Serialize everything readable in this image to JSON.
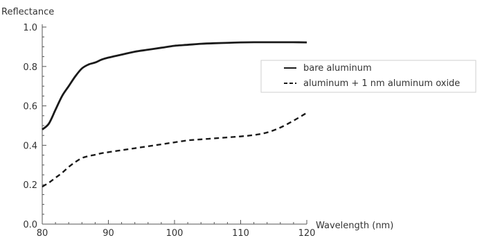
{
  "chart_data": {
    "type": "line",
    "title": "",
    "xlabel": "Wavelength (nm)",
    "ylabel": "Reflectance",
    "xlim": [
      80,
      120
    ],
    "ylim": [
      0.0,
      1.0
    ],
    "x_ticks": [
      80,
      90,
      100,
      110,
      120
    ],
    "y_ticks": [
      0.0,
      0.2,
      0.4,
      0.6,
      0.8,
      1.0
    ],
    "x_tick_labels": [
      "80",
      "90",
      "100",
      "110",
      "120"
    ],
    "y_tick_labels": [
      "0.0",
      "0.2",
      "0.4",
      "0.6",
      "0.8",
      "1.0"
    ],
    "grid": false,
    "legend_position": "right",
    "series": [
      {
        "name": "bare aluminum",
        "style": "solid",
        "x": [
          80,
          81,
          82,
          83,
          84,
          85,
          86,
          87,
          88,
          89,
          90,
          92,
          94,
          96,
          98,
          100,
          102,
          104,
          106,
          108,
          110,
          112,
          114,
          116,
          118,
          120
        ],
        "y": [
          0.48,
          0.51,
          0.58,
          0.65,
          0.7,
          0.75,
          0.79,
          0.81,
          0.82,
          0.835,
          0.845,
          0.86,
          0.875,
          0.885,
          0.895,
          0.905,
          0.91,
          0.915,
          0.918,
          0.92,
          0.922,
          0.923,
          0.923,
          0.923,
          0.923,
          0.922
        ]
      },
      {
        "name": "aluminum + 1 nm aluminum oxide",
        "style": "dashed",
        "x": [
          80,
          81,
          82,
          83,
          84,
          85,
          86,
          87,
          88,
          89,
          90,
          92,
          94,
          96,
          98,
          100,
          102,
          104,
          106,
          108,
          110,
          112,
          114,
          116,
          118,
          120
        ],
        "y": [
          0.19,
          0.21,
          0.235,
          0.26,
          0.29,
          0.315,
          0.335,
          0.345,
          0.352,
          0.36,
          0.365,
          0.375,
          0.385,
          0.395,
          0.405,
          0.415,
          0.425,
          0.43,
          0.435,
          0.44,
          0.445,
          0.452,
          0.465,
          0.49,
          0.525,
          0.565
        ]
      }
    ]
  }
}
